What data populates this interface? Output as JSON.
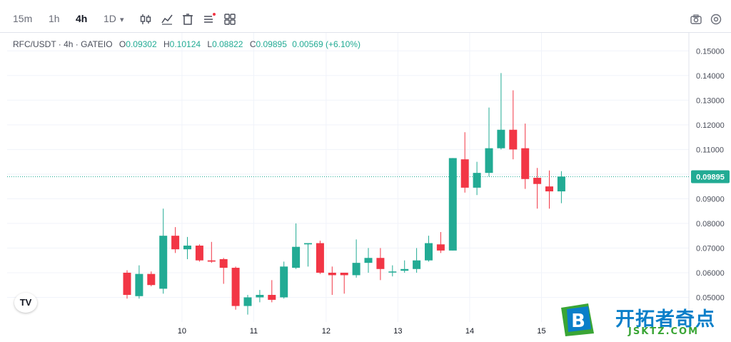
{
  "toolbar": {
    "timeframes": [
      "15m",
      "1h",
      "4h",
      "1D"
    ],
    "active_timeframe": "4h",
    "dropdown_caret": "▾",
    "tools": [
      "candles-icon",
      "indicators-icon",
      "trash-icon",
      "drawings-list-icon",
      "layout-grid-icon"
    ],
    "right_tools": [
      "camera-icon",
      "settings-icon"
    ]
  },
  "legend": {
    "symbol": "RFC/USDT · 4h · GATEIO",
    "open_label": "O",
    "open": "0.09302",
    "high_label": "H",
    "high": "0.10124",
    "low_label": "L",
    "low": "0.08822",
    "close_label": "C",
    "close": "0.09895",
    "change": "0.00569 (+6.10%)"
  },
  "watermark": {
    "logo_letter": "B",
    "title": "开拓者奇点",
    "subtitle": "JSKTZ.COM"
  },
  "tv_logo": "TV",
  "colors": {
    "up": "#22ab94",
    "down": "#f23645",
    "last_price_bg": "#22ab94",
    "grid": "#f0f3fa"
  },
  "chart_data": {
    "type": "candlestick",
    "title": "RFC/USDT · 4h · GATEIO",
    "ylim": [
      0.04,
      0.155
    ],
    "y_ticks": [
      "0.15000",
      "0.14000",
      "0.13000",
      "0.12000",
      "0.11000",
      "0.10000",
      "0.09000",
      "0.08000",
      "0.07000",
      "0.06000",
      "0.05000"
    ],
    "x_ticks": [
      {
        "label": "10",
        "index": 4.55
      },
      {
        "label": "11",
        "index": 10.5
      },
      {
        "label": "12",
        "index": 16.5
      },
      {
        "label": "13",
        "index": 22.45
      },
      {
        "label": "14",
        "index": 28.4
      },
      {
        "label": "15",
        "index": 34.35
      }
    ],
    "last_price": "0.09895",
    "candles": [
      {
        "o": 0.06,
        "h": 0.061,
        "l": 0.0495,
        "c": 0.051
      },
      {
        "o": 0.0505,
        "h": 0.063,
        "l": 0.0495,
        "c": 0.0595
      },
      {
        "o": 0.0595,
        "h": 0.0605,
        "l": 0.0545,
        "c": 0.055
      },
      {
        "o": 0.0535,
        "h": 0.086,
        "l": 0.0515,
        "c": 0.075
      },
      {
        "o": 0.075,
        "h": 0.0785,
        "l": 0.068,
        "c": 0.0695
      },
      {
        "o": 0.0695,
        "h": 0.0745,
        "l": 0.0655,
        "c": 0.071
      },
      {
        "o": 0.071,
        "h": 0.0715,
        "l": 0.0645,
        "c": 0.065
      },
      {
        "o": 0.065,
        "h": 0.0725,
        "l": 0.064,
        "c": 0.0645
      },
      {
        "o": 0.0655,
        "h": 0.066,
        "l": 0.0555,
        "c": 0.062
      },
      {
        "o": 0.062,
        "h": 0.0625,
        "l": 0.045,
        "c": 0.0465
      },
      {
        "o": 0.0465,
        "h": 0.051,
        "l": 0.043,
        "c": 0.05
      },
      {
        "o": 0.05,
        "h": 0.053,
        "l": 0.048,
        "c": 0.051
      },
      {
        "o": 0.051,
        "h": 0.057,
        "l": 0.048,
        "c": 0.049
      },
      {
        "o": 0.05,
        "h": 0.0645,
        "l": 0.0495,
        "c": 0.0625
      },
      {
        "o": 0.062,
        "h": 0.08,
        "l": 0.0615,
        "c": 0.0705
      },
      {
        "o": 0.0715,
        "h": 0.072,
        "l": 0.0625,
        "c": 0.072
      },
      {
        "o": 0.072,
        "h": 0.073,
        "l": 0.0595,
        "c": 0.06
      },
      {
        "o": 0.06,
        "h": 0.0625,
        "l": 0.051,
        "c": 0.059
      },
      {
        "o": 0.06,
        "h": 0.06,
        "l": 0.0515,
        "c": 0.059
      },
      {
        "o": 0.059,
        "h": 0.0735,
        "l": 0.058,
        "c": 0.064
      },
      {
        "o": 0.064,
        "h": 0.07,
        "l": 0.06,
        "c": 0.066
      },
      {
        "o": 0.066,
        "h": 0.07,
        "l": 0.057,
        "c": 0.0615
      },
      {
        "o": 0.0605,
        "h": 0.063,
        "l": 0.0585,
        "c": 0.0605
      },
      {
        "o": 0.0608,
        "h": 0.065,
        "l": 0.06,
        "c": 0.0615
      },
      {
        "o": 0.0615,
        "h": 0.07,
        "l": 0.06,
        "c": 0.065
      },
      {
        "o": 0.065,
        "h": 0.075,
        "l": 0.0645,
        "c": 0.072
      },
      {
        "o": 0.0715,
        "h": 0.0765,
        "l": 0.068,
        "c": 0.069
      },
      {
        "o": 0.069,
        "h": 0.1065,
        "l": 0.069,
        "c": 0.1065
      },
      {
        "o": 0.106,
        "h": 0.117,
        "l": 0.0925,
        "c": 0.0945
      },
      {
        "o": 0.0945,
        "h": 0.105,
        "l": 0.0915,
        "c": 0.1005
      },
      {
        "o": 0.1005,
        "h": 0.127,
        "l": 0.099,
        "c": 0.1105
      },
      {
        "o": 0.1105,
        "h": 0.141,
        "l": 0.11,
        "c": 0.118
      },
      {
        "o": 0.118,
        "h": 0.134,
        "l": 0.106,
        "c": 0.11
      },
      {
        "o": 0.1105,
        "h": 0.1205,
        "l": 0.094,
        "c": 0.098
      },
      {
        "o": 0.0985,
        "h": 0.1025,
        "l": 0.086,
        "c": 0.096
      },
      {
        "o": 0.095,
        "h": 0.1015,
        "l": 0.086,
        "c": 0.093
      },
      {
        "o": 0.093,
        "h": 0.1012,
        "l": 0.0882,
        "c": 0.099
      }
    ]
  }
}
